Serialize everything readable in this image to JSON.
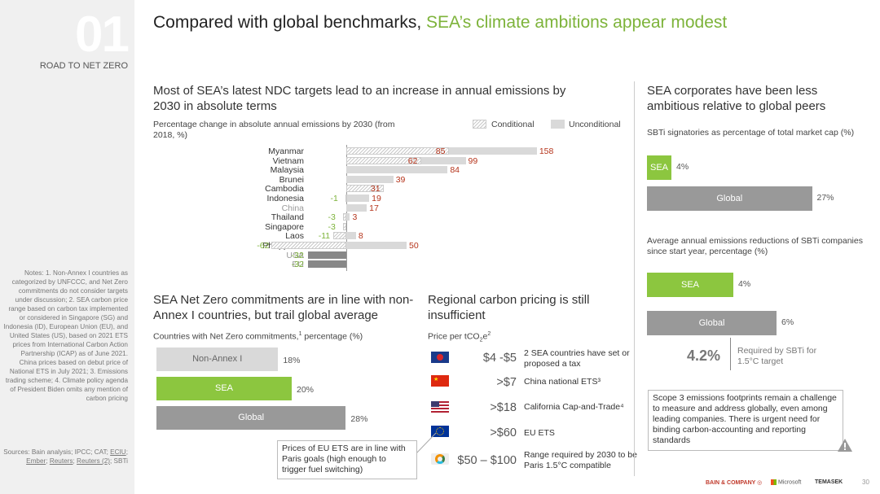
{
  "sidebar": {
    "number": "01",
    "section": "ROAD TO NET ZERO",
    "notes": "Notes: 1. Non-Annex I countries as categorized by UNFCCC, and Net Zero commitments do not consider targets under discussion; 2. SEA carbon price range based on carbon tax implemented or considered in Singapore (SG) and Indonesia (ID), European Union (EU), and United States (US), based on 2021 ETS prices from International Carbon Action Partnership (ICAP) as of June 2021. China prices based on debut price of National ETS in July 2021; 3. Emissions trading scheme; 4. Climate policy agenda of President Biden omits any mention of carbon pricing",
    "sources_prefix": "Sources: Bain analysis; IPCC; CAT; ",
    "sources_links": [
      "ECIU",
      "Ember",
      "Reuters",
      "Reuters (2)"
    ],
    "sources_suffix": "; SBTi"
  },
  "title": {
    "main": "Compared with global benchmarks, ",
    "highlight": "SEA’s climate ambitions appear modest"
  },
  "ndc": {
    "heading": "Most of SEA’s latest NDC targets lead to an increase in annual emissions by 2030 in absolute terms",
    "subheading": "Percentage change in absolute annual emissions by 2030 (from 2018, %)",
    "legend_conditional": "Conditional",
    "legend_unconditional": "Unconditional"
  },
  "chart_data": [
    {
      "type": "bar",
      "title": "Percentage change in absolute annual emissions by 2030 (from 2018, %)",
      "categories": [
        "Myanmar",
        "Vietnam",
        "Malaysia",
        "Brunei",
        "Cambodia",
        "Indonesia",
        "China",
        "Thailand",
        "Singapore",
        "Laos",
        "Philippines",
        "USA",
        "EU"
      ],
      "series": [
        {
          "name": "Conditional",
          "values": [
            85,
            62,
            null,
            null,
            31,
            -1,
            null,
            -3,
            -3,
            -11,
            -62,
            null,
            null
          ]
        },
        {
          "name": "Unconditional",
          "values": [
            158,
            99,
            84,
            39,
            null,
            19,
            17,
            3,
            null,
            8,
            50,
            -32,
            -32
          ]
        }
      ]
    },
    {
      "type": "bar",
      "title": "Countries with Net Zero commitments, percentage (%)",
      "categories": [
        "Non-Annex I",
        "SEA",
        "Global"
      ],
      "values": [
        18,
        20,
        28
      ]
    },
    {
      "type": "bar",
      "title": "SBTi signatories as percentage of total market cap (%)",
      "categories": [
        "SEA",
        "Global"
      ],
      "values": [
        4,
        27
      ]
    },
    {
      "type": "bar",
      "title": "Average annual emissions reductions of SBTi companies since start year, percentage (%)",
      "categories": [
        "SEA",
        "Global"
      ],
      "values": [
        4,
        6
      ]
    }
  ],
  "labels": {
    "myanmar": [
      "85",
      "158"
    ],
    "vietnam": [
      "62",
      "99"
    ],
    "malaysia": "84",
    "brunei": "39",
    "cambodia": "31",
    "indonesia": [
      "-1",
      "19"
    ],
    "china": "17",
    "thailand": [
      "-3",
      "3"
    ],
    "singapore": "-3",
    "laos": [
      "-11",
      "8"
    ],
    "philippines": [
      "-62",
      "50"
    ],
    "usa": "-32",
    "eu": "-32"
  },
  "netzero": {
    "heading": "SEA Net Zero commitments are in line with non-Annex I countries, but trail global average",
    "subheading_a": "Countries with Net Zero commitments,",
    "subheading_sup": "1",
    "subheading_b": " percentage (%)",
    "bars": [
      {
        "label": "Non-Annex I",
        "value": "18%",
        "pct": 18
      },
      {
        "label": "SEA",
        "value": "20%",
        "pct": 20
      },
      {
        "label": "Global",
        "value": "28%",
        "pct": 28
      }
    ]
  },
  "carbon": {
    "heading": "Regional carbon pricing is still insufficient",
    "subheading_a": "Price per tCO",
    "subheading_sub": "2",
    "subheading_b": "e",
    "subheading_sup": "2",
    "rows": [
      {
        "price": "$4 -$5",
        "desc": "2 SEA countries have set or proposed a tax"
      },
      {
        "price": ">$7",
        "desc": "China national ETS³"
      },
      {
        "price": ">$18",
        "desc": "California Cap-and-Trade⁴"
      },
      {
        "price": ">$60",
        "desc": "EU ETS"
      },
      {
        "price": "$50 – $100",
        "desc": "Range required by 2030 to be Paris 1.5°C compatible"
      }
    ],
    "callout": "Prices of EU ETS are in line with Paris goals (high enough to trigger fuel switching)"
  },
  "corporates": {
    "heading": "SEA corporates have been less ambitious relative to global peers",
    "sbti_sub": "SBTi signatories as percentage of total market cap (%)",
    "sbti_bars": [
      {
        "label": "SEA",
        "value": "4%",
        "pct": 4
      },
      {
        "label": "Global",
        "value": "27%",
        "pct": 27
      }
    ],
    "red_sub": "Average annual emissions reductions of SBTi companies since start year, percentage (%)",
    "red_bars": [
      {
        "label": "SEA",
        "value": "4%",
        "pct": 4
      },
      {
        "label": "Global",
        "value": "6%",
        "pct": 6
      }
    ],
    "required_value": "4.2%",
    "required_label": "Required by SBTi for 1.5°C target",
    "scope3": "Scope 3 emissions footprints remain a challenge to measure and address globally, even among leading companies. There is urgent need for binding carbon-accounting and reporting standards"
  },
  "footer": {
    "bain": "BAIN & COMPANY",
    "microsoft": "Microsoft",
    "temasek": "TEMASEK",
    "page": "30"
  },
  "colors": {
    "green": "#8cc63f",
    "red": "#b5341b",
    "grey_bar": "#999999",
    "light_bar": "#d9d9d9"
  }
}
